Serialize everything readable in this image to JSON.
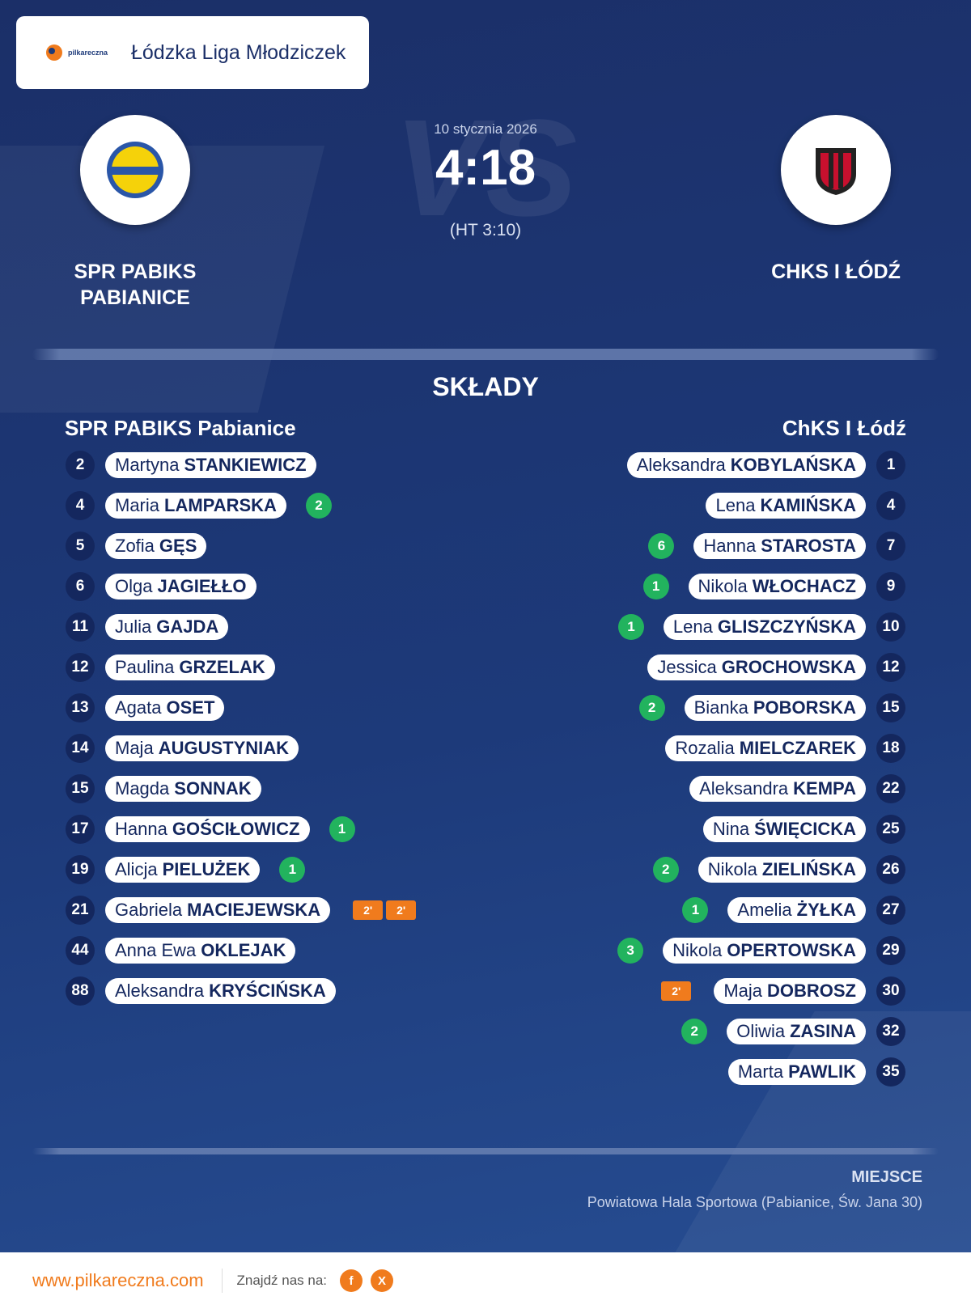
{
  "header": {
    "logo_text": "pilkareczna",
    "league": "Łódzka Liga Młodziczek"
  },
  "match": {
    "date": "10 stycznia 2026",
    "score": "4:18",
    "halftime": "(HT 3:10)",
    "vs": "VS",
    "home_team": "SPR PABIKS PABIANICE",
    "away_team": "CHKS I ŁÓDŹ"
  },
  "lineups": {
    "title": "SKŁADY",
    "home": {
      "name": "SPR PABIKS Pabianice",
      "players": [
        {
          "number": 2,
          "first": "Martyna",
          "last": "STANKIEWICZ"
        },
        {
          "number": 4,
          "first": "Maria",
          "last": "LAMPARSKA",
          "goals": 2
        },
        {
          "number": 5,
          "first": "Zofia",
          "last": "GĘS"
        },
        {
          "number": 6,
          "first": "Olga",
          "last": "JAGIEŁŁO"
        },
        {
          "number": 11,
          "first": "Julia",
          "last": "GAJDA"
        },
        {
          "number": 12,
          "first": "Paulina",
          "last": "GRZELAK"
        },
        {
          "number": 13,
          "first": "Agata",
          "last": "OSET"
        },
        {
          "number": 14,
          "first": "Maja",
          "last": "AUGUSTYNIAK"
        },
        {
          "number": 15,
          "first": "Magda",
          "last": "SONNAK"
        },
        {
          "number": 17,
          "first": "Hanna",
          "last": "GOŚCIŁOWICZ",
          "goals": 1
        },
        {
          "number": 19,
          "first": "Alicja",
          "last": "PIELUŻEK",
          "goals": 1
        },
        {
          "number": 21,
          "first": "Gabriela",
          "last": "MACIEJEWSKA",
          "penalties": [
            "2'",
            "2'"
          ]
        },
        {
          "number": 44,
          "first": "Anna Ewa",
          "last": "OKLEJAK"
        },
        {
          "number": 88,
          "first": "Aleksandra",
          "last": "KRYŚCIŃSKA"
        }
      ]
    },
    "away": {
      "name": "ChKS I Łódź",
      "players": [
        {
          "number": 1,
          "first": "Aleksandra",
          "last": "KOBYLAŃSKA"
        },
        {
          "number": 4,
          "first": "Lena",
          "last": "KAMIŃSKA"
        },
        {
          "number": 7,
          "first": "Hanna",
          "last": "STAROSTA",
          "goals": 6
        },
        {
          "number": 9,
          "first": "Nikola",
          "last": "WŁOCHACZ",
          "goals": 1
        },
        {
          "number": 10,
          "first": "Lena",
          "last": "GLISZCZYŃSKA",
          "goals": 1
        },
        {
          "number": 12,
          "first": "Jessica",
          "last": "GROCHOWSKA"
        },
        {
          "number": 15,
          "first": "Bianka",
          "last": "POBORSKA",
          "goals": 2
        },
        {
          "number": 18,
          "first": "Rozalia",
          "last": "MIELCZAREK"
        },
        {
          "number": 22,
          "first": "Aleksandra",
          "last": "KEMPA"
        },
        {
          "number": 25,
          "first": "Nina",
          "last": "ŚWIĘCICKA"
        },
        {
          "number": 26,
          "first": "Nikola",
          "last": "ZIELIŃSKA",
          "goals": 2
        },
        {
          "number": 27,
          "first": "Amelia",
          "last": "ŻYŁKA",
          "goals": 1
        },
        {
          "number": 29,
          "first": "Nikola",
          "last": "OPERTOWSKA",
          "goals": 3
        },
        {
          "number": 30,
          "first": "Maja",
          "last": "DOBROSZ",
          "penalties": [
            "2'"
          ]
        },
        {
          "number": 32,
          "first": "Oliwia",
          "last": "ZASINA",
          "goals": 2
        },
        {
          "number": 35,
          "first": "Marta",
          "last": "PAWLIK"
        }
      ]
    }
  },
  "venue": {
    "label": "MIEJSCE",
    "name": "Powiatowa Hala Sportowa (Pabianice, Św. Jana 30)"
  },
  "footer": {
    "site": "www.pilkareczna.com",
    "find_us": "Znajdź nas na:",
    "facebook": "f",
    "x": "X"
  }
}
